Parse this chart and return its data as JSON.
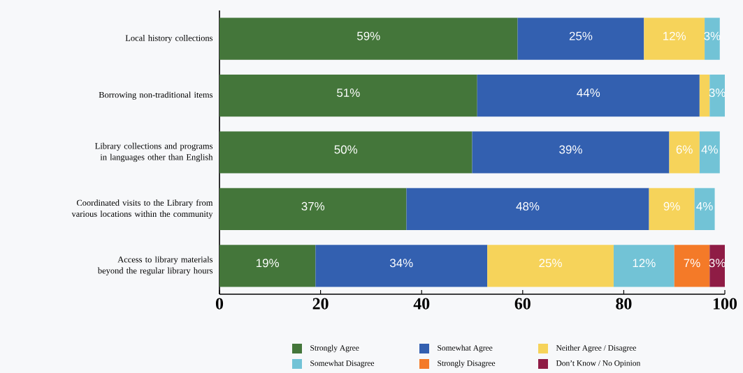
{
  "chart_data": {
    "type": "bar",
    "orientation": "horizontal",
    "stacked": true,
    "legend": "bottom",
    "grid": false,
    "categories": [
      "Local history collections",
      "Borrowing non-traditional items",
      "Library collections and programs in languages other than English",
      "Coordinated visits to the Library from various locations within the community",
      "Access to library materials beyond the regular library hours"
    ],
    "xlim": [
      0,
      100
    ],
    "xticks": [
      0,
      20,
      40,
      60,
      80,
      100
    ],
    "series": [
      {
        "name": "Strongly Agree",
        "color": "#44763a",
        "values": [
          59,
          51,
          50,
          37,
          19
        ],
        "value_labels": [
          "59%",
          "51%",
          "50%",
          "37%",
          "19%"
        ]
      },
      {
        "name": "Somewhat Agree",
        "color": "#3360b0",
        "values": [
          25,
          44,
          39,
          48,
          34
        ],
        "value_labels": [
          "25%",
          "44%",
          "39%",
          "48%",
          "34%"
        ]
      },
      {
        "name": "Neither Agree / Disagree",
        "color": "#f6d35a",
        "values": [
          12,
          2,
          6,
          9,
          25
        ],
        "value_labels": [
          "12%",
          null,
          "6%",
          "9%",
          "25%"
        ]
      },
      {
        "name": "Somewhat Disagree",
        "color": "#72c3d6",
        "values": [
          3,
          3,
          4,
          4,
          12
        ],
        "value_labels": [
          "3%",
          "3%",
          "4%",
          "4%",
          "12%"
        ]
      },
      {
        "name": "Strongly Disagree",
        "color": "#f47a28",
        "values": [
          null,
          null,
          null,
          null,
          7
        ],
        "value_labels": [
          null,
          null,
          null,
          null,
          "7%"
        ]
      },
      {
        "name": "Don’t Know / No Opinion",
        "color": "#8f1c45",
        "values": [
          null,
          null,
          null,
          null,
          3
        ],
        "value_labels": [
          null,
          null,
          null,
          null,
          "3%"
        ]
      }
    ]
  }
}
